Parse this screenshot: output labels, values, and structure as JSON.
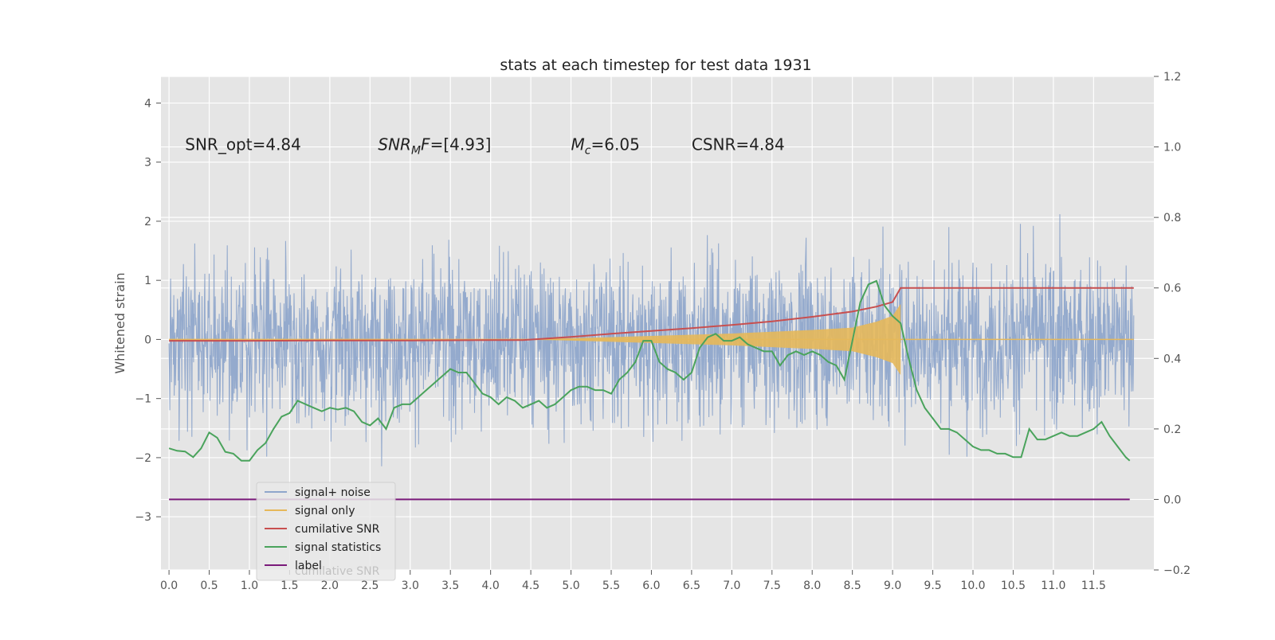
{
  "chart_data": {
    "type": "line",
    "title": "stats at each timestep for test data 1931",
    "ylabel": "Whitened strain",
    "y2label": "",
    "xlim": [
      -0.1,
      12.25
    ],
    "ylim": [
      -3.9,
      4.45
    ],
    "y2lim": [
      -0.2,
      1.2
    ],
    "x_ticks": [
      0.0,
      0.5,
      1.0,
      1.5,
      2.0,
      2.5,
      3.0,
      3.5,
      4.0,
      4.5,
      5.0,
      5.5,
      6.0,
      6.5,
      7.0,
      7.5,
      8.0,
      8.5,
      9.0,
      9.5,
      10.0,
      10.5,
      11.0,
      11.5
    ],
    "x_tick_labels": [
      "0.0",
      "0.5",
      "1.0",
      "1.5",
      "2.0",
      "2.5",
      "3.0",
      "3.5",
      "4.0",
      "4.5",
      "5.0",
      "5.5",
      "6.0",
      "6.5",
      "7.0",
      "7.5",
      "8.0",
      "8.5",
      "9.0",
      "9.5",
      "10.0",
      "10.5",
      "11.0",
      "11.5"
    ],
    "y_ticks": [
      -3,
      -2,
      -1,
      0,
      1,
      2,
      3,
      4
    ],
    "y_tick_labels": [
      "−3",
      "−2",
      "−1",
      "0",
      "1",
      "2",
      "3",
      "4"
    ],
    "y2_ticks": [
      -0.2,
      0.0,
      0.2,
      0.4,
      0.6,
      0.8,
      1.0,
      1.2
    ],
    "y2_tick_labels": [
      "−0.2",
      "0.0",
      "0.2",
      "0.4",
      "0.6",
      "0.8",
      "1.0",
      "1.2"
    ],
    "grid": true,
    "legend_position": "bottom-left",
    "annotations": [
      {
        "text": "SNR_opt=4.84",
        "x": 0.2
      },
      {
        "text": "SNR_MF=[4.93]",
        "x": 2.6
      },
      {
        "text": "M_c=6.05",
        "x": 5.0
      },
      {
        "text": "CSNR=4.84",
        "x": 6.5
      }
    ],
    "annotation_y": 3.3,
    "colors": {
      "plot_bg": "#e5e5e5",
      "grid": "#ffffff",
      "noise": "#8fa6cb",
      "signal": "#e6b85a",
      "cumulative": "#c84f4f",
      "statistics": "#4aa35c",
      "label": "#7a1a7a"
    },
    "series": [
      {
        "name": "signal+ noise",
        "axis": "left",
        "description_range": [
          0.0,
          12.0
        ],
        "typical_spread": [
          -1.9,
          2.0
        ]
      },
      {
        "name": "signal only",
        "axis": "left",
        "envelope_x": [
          4.4,
          5.0,
          5.5,
          6.0,
          6.5,
          7.0,
          7.5,
          8.0,
          8.5,
          8.8,
          9.0,
          9.1
        ],
        "envelope_amp": [
          0.0,
          0.02,
          0.04,
          0.06,
          0.08,
          0.1,
          0.13,
          0.16,
          0.2,
          0.3,
          0.4,
          0.6
        ],
        "flat_after": 9.1
      },
      {
        "name": "cumilative SNR",
        "axis": "right",
        "x": [
          0.0,
          1.0,
          2.0,
          3.0,
          4.0,
          4.4,
          5.0,
          5.5,
          6.0,
          6.5,
          7.0,
          7.5,
          8.0,
          8.5,
          8.8,
          9.0,
          9.1,
          10.0,
          11.0,
          12.0
        ],
        "y": [
          0.45,
          0.45,
          0.451,
          0.451,
          0.452,
          0.452,
          0.461,
          0.47,
          0.478,
          0.486,
          0.495,
          0.505,
          0.518,
          0.533,
          0.547,
          0.56,
          0.6,
          0.6,
          0.6,
          0.6
        ]
      },
      {
        "name": "signal statistics",
        "axis": "right",
        "x": [
          0.0,
          0.1,
          0.2,
          0.3,
          0.4,
          0.5,
          0.6,
          0.7,
          0.8,
          0.9,
          1.0,
          1.1,
          1.2,
          1.3,
          1.4,
          1.5,
          1.6,
          1.7,
          1.8,
          1.9,
          2.0,
          2.1,
          2.2,
          2.3,
          2.4,
          2.5,
          2.6,
          2.7,
          2.8,
          2.9,
          3.0,
          3.1,
          3.2,
          3.3,
          3.4,
          3.5,
          3.6,
          3.7,
          3.8,
          3.9,
          4.0,
          4.1,
          4.2,
          4.3,
          4.4,
          4.5,
          4.6,
          4.7,
          4.8,
          4.9,
          5.0,
          5.1,
          5.2,
          5.3,
          5.4,
          5.5,
          5.6,
          5.7,
          5.8,
          5.9,
          6.0,
          6.1,
          6.2,
          6.3,
          6.4,
          6.5,
          6.6,
          6.7,
          6.8,
          6.9,
          7.0,
          7.1,
          7.2,
          7.3,
          7.4,
          7.5,
          7.6,
          7.7,
          7.8,
          7.9,
          8.0,
          8.1,
          8.2,
          8.3,
          8.4,
          8.5,
          8.6,
          8.7,
          8.8,
          8.9,
          9.0,
          9.1,
          9.2,
          9.3,
          9.4,
          9.5,
          9.6,
          9.7,
          9.8,
          9.9,
          10.0,
          10.1,
          10.2,
          10.3,
          10.4,
          10.5,
          10.6,
          10.7,
          10.8,
          10.9,
          11.0,
          11.1,
          11.2,
          11.3,
          11.4,
          11.5,
          11.6,
          11.7,
          11.8,
          11.9,
          11.95
        ],
        "y": [
          0.145,
          0.138,
          0.136,
          0.12,
          0.145,
          0.19,
          0.175,
          0.135,
          0.13,
          0.11,
          0.11,
          0.14,
          0.16,
          0.2,
          0.235,
          0.245,
          0.28,
          0.27,
          0.26,
          0.25,
          0.26,
          0.255,
          0.26,
          0.25,
          0.22,
          0.21,
          0.23,
          0.2,
          0.26,
          0.27,
          0.27,
          0.29,
          0.31,
          0.33,
          0.35,
          0.37,
          0.36,
          0.36,
          0.33,
          0.3,
          0.29,
          0.27,
          0.29,
          0.28,
          0.26,
          0.27,
          0.28,
          0.26,
          0.27,
          0.29,
          0.31,
          0.32,
          0.32,
          0.31,
          0.31,
          0.3,
          0.34,
          0.36,
          0.39,
          0.45,
          0.45,
          0.39,
          0.37,
          0.36,
          0.34,
          0.36,
          0.43,
          0.46,
          0.47,
          0.45,
          0.45,
          0.46,
          0.44,
          0.43,
          0.42,
          0.42,
          0.38,
          0.41,
          0.42,
          0.41,
          0.42,
          0.41,
          0.39,
          0.38,
          0.34,
          0.45,
          0.56,
          0.61,
          0.62,
          0.55,
          0.52,
          0.5,
          0.4,
          0.31,
          0.26,
          0.23,
          0.2,
          0.2,
          0.19,
          0.17,
          0.15,
          0.14,
          0.14,
          0.13,
          0.13,
          0.12,
          0.12,
          0.2,
          0.17,
          0.17,
          0.18,
          0.19,
          0.18,
          0.18,
          0.19,
          0.2,
          0.22,
          0.18,
          0.15,
          0.12,
          0.11
        ]
      },
      {
        "name": "label",
        "axis": "right",
        "x": [
          0.0,
          11.95
        ],
        "y": [
          0.0,
          0.0
        ]
      }
    ],
    "legend_overlap_text": "cumilative SNR"
  }
}
